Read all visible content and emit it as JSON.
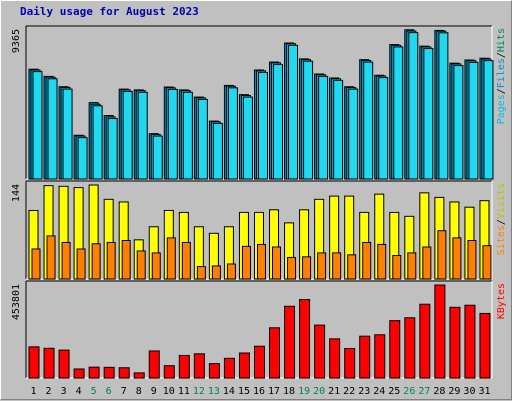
{
  "title": "Daily usage for August 2023",
  "chart_data": {
    "type": "bar",
    "title": "Daily usage for August 2023",
    "categories": [
      "1",
      "2",
      "3",
      "4",
      "5",
      "6",
      "7",
      "8",
      "9",
      "10",
      "11",
      "12",
      "13",
      "14",
      "15",
      "16",
      "17",
      "18",
      "19",
      "20",
      "21",
      "22",
      "23",
      "24",
      "25",
      "26",
      "27",
      "28",
      "29",
      "30",
      "31"
    ],
    "weekend_days": [
      "5",
      "6",
      "12",
      "13",
      "19",
      "20",
      "26",
      "27"
    ],
    "colors": {
      "hits": "#00c0e0",
      "files": "#0090d0",
      "visits": "#ffff00",
      "sites": "#ff8000",
      "kbytes": "#ff0000",
      "weekday_label": "#000000",
      "weekend_label": "#008060",
      "slash": "#000000",
      "plot_bg": "#c0c0c0"
    },
    "panels": [
      {
        "id": "hits-files",
        "max_label": "9365",
        "ylim": [
          0,
          9365
        ],
        "side_labels": [
          {
            "text": "Pages",
            "color": "#00c0e0"
          },
          {
            "text": "Files",
            "color": "#0090d0"
          },
          {
            "text": "Hits",
            "color": "#008060"
          }
        ],
        "series": [
          {
            "name": "Hits",
            "values": [
              6900,
              6450,
              5800,
              2750,
              4800,
              3990,
              5650,
              5600,
              2850,
              5780,
              5600,
              5150,
              3640,
              5880,
              5300,
              6850,
              7350,
              8550,
              7550,
              6600,
              6350,
              5800,
              7500,
              6520,
              8450,
              9380,
              8350,
              9340,
              7280,
              7480,
              7590
            ]
          },
          {
            "name": "Files",
            "values": [
              6850,
              6400,
              5750,
              2700,
              4700,
              3900,
              5600,
              5550,
              2800,
              5730,
              5550,
              5100,
              3590,
              5830,
              5250,
              6800,
              7300,
              8500,
              7500,
              6550,
              6300,
              5750,
              7450,
              6470,
              8400,
              9300,
              8300,
              9290,
              7230,
              7430,
              7540
            ]
          },
          {
            "name": "Pages",
            "values": [
              6750,
              6300,
              5650,
              2600,
              4600,
              3800,
              5500,
              5450,
              2700,
              5630,
              5450,
              5000,
              3490,
              5730,
              5150,
              6700,
              7200,
              8400,
              7400,
              6450,
              6200,
              5650,
              7350,
              6370,
              8300,
              9200,
              8200,
              9190,
              7130,
              7330,
              7440
            ]
          }
        ]
      },
      {
        "id": "visits-sites",
        "max_label": "144",
        "ylim": [
          0,
          144
        ],
        "side_labels": [
          {
            "text": "Sites",
            "color": "#ff8000"
          },
          {
            "text": "Visits",
            "color": "#c0c000"
          }
        ],
        "series": [
          {
            "name": "Visits",
            "values": [
              105,
              143,
              142,
              140,
              144,
              122,
              118,
              60,
              80,
              105,
              102,
              80,
              70,
              80,
              102,
              102,
              106,
              86,
              106,
              122,
              127,
              127,
              102,
              130,
              102,
              96,
              132,
              125,
              118,
              110,
              120
            ]
          },
          {
            "name": "Sites",
            "values": [
              46,
              66,
              56,
              46,
              54,
              56,
              59,
              43,
              40,
              63,
              56,
              19,
              20,
              23,
              50,
              53,
              49,
              33,
              34,
              40,
              40,
              37,
              56,
              53,
              36,
              40,
              49,
              74,
              63,
              59,
              51
            ]
          }
        ]
      },
      {
        "id": "kbytes",
        "max_label": "453801",
        "ylim": [
          0,
          453801
        ],
        "side_labels": [
          {
            "text": "KBytes",
            "color": "#ff0000"
          }
        ],
        "series": [
          {
            "name": "KBytes",
            "values": [
              152000,
              145000,
              136000,
              44000,
              53000,
              52000,
              50000,
              25000,
              132000,
              60000,
              110000,
              118000,
              70000,
              96000,
              122000,
              155000,
              245000,
              350000,
              383000,
              258000,
              191000,
              144000,
              204000,
              211000,
              280000,
              294000,
              360000,
              453800,
              345000,
              355000,
              315000
            ]
          }
        ]
      }
    ]
  }
}
